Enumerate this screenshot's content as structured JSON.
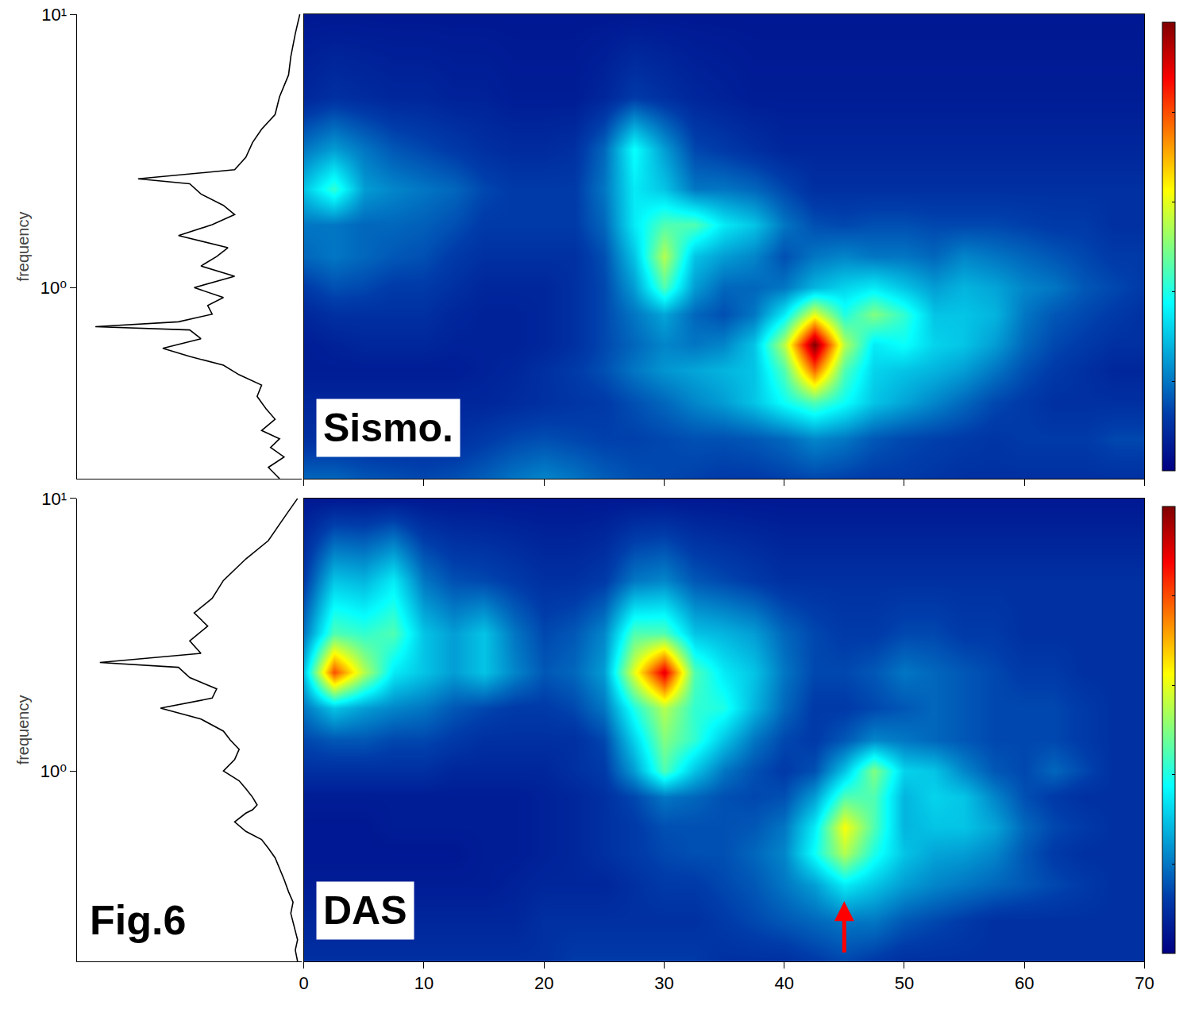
{
  "figure_label": "Fig.6",
  "chart_data": [
    {
      "type": "heatmap",
      "label": "Sismo.",
      "color": "Jet",
      "zlim": [
        0,
        1
      ],
      "log": "y",
      "tick_labels": "y",
      "y_title": "frequency",
      "xlim": [
        0,
        70
      ],
      "xticks": [
        0,
        10,
        20,
        30,
        40,
        50,
        60,
        70
      ],
      "ylim": [
        0.2,
        10
      ],
      "yticks": [
        {
          "value": 1,
          "label": "10⁰"
        },
        {
          "value": 10,
          "label": "10¹"
        }
      ],
      "x": [
        0,
        2.5,
        5,
        7.5,
        10,
        12.5,
        15,
        17.5,
        20,
        22.5,
        25,
        27.5,
        30,
        32.5,
        35,
        37.5,
        40,
        42.5,
        45,
        47.5,
        50,
        52.5,
        55,
        57.5,
        60,
        62.5,
        65,
        67.5,
        70
      ],
      "y": [
        0.2,
        0.28,
        0.38,
        0.5,
        0.62,
        0.8,
        1.0,
        1.3,
        1.7,
        2.3,
        3.2,
        5,
        10
      ],
      "z": [
        [
          0.18,
          0.18,
          0.16,
          0.15,
          0.14,
          0.15,
          0.17,
          0.2,
          0.22,
          0.2,
          0.17,
          0.15,
          0.14,
          0.13,
          0.12,
          0.12,
          0.13,
          0.14,
          0.13,
          0.12,
          0.12,
          0.11,
          0.1,
          0.1,
          0.1,
          0.1,
          0.1,
          0.1,
          0.1
        ],
        [
          0.1,
          0.1,
          0.1,
          0.1,
          0.1,
          0.1,
          0.12,
          0.14,
          0.15,
          0.14,
          0.13,
          0.13,
          0.14,
          0.15,
          0.15,
          0.16,
          0.18,
          0.22,
          0.2,
          0.16,
          0.14,
          0.13,
          0.12,
          0.11,
          0.12,
          0.12,
          0.12,
          0.14,
          0.14
        ],
        [
          0.08,
          0.08,
          0.08,
          0.08,
          0.08,
          0.08,
          0.08,
          0.09,
          0.1,
          0.11,
          0.12,
          0.15,
          0.18,
          0.22,
          0.25,
          0.3,
          0.38,
          0.45,
          0.38,
          0.3,
          0.26,
          0.22,
          0.18,
          0.14,
          0.12,
          0.1,
          0.1,
          0.1,
          0.1
        ],
        [
          0.06,
          0.06,
          0.06,
          0.06,
          0.06,
          0.06,
          0.07,
          0.08,
          0.1,
          0.12,
          0.15,
          0.2,
          0.24,
          0.26,
          0.28,
          0.3,
          0.45,
          0.78,
          0.45,
          0.32,
          0.3,
          0.28,
          0.25,
          0.2,
          0.15,
          0.12,
          0.1,
          0.08,
          0.08
        ],
        [
          0.06,
          0.07,
          0.08,
          0.08,
          0.08,
          0.07,
          0.07,
          0.07,
          0.08,
          0.1,
          0.14,
          0.18,
          0.22,
          0.2,
          0.22,
          0.3,
          0.55,
          1.0,
          0.55,
          0.35,
          0.38,
          0.32,
          0.3,
          0.25,
          0.18,
          0.14,
          0.12,
          0.1,
          0.1
        ],
        [
          0.08,
          0.1,
          0.1,
          0.1,
          0.1,
          0.08,
          0.07,
          0.07,
          0.08,
          0.1,
          0.14,
          0.2,
          0.26,
          0.18,
          0.15,
          0.2,
          0.35,
          0.6,
          0.4,
          0.5,
          0.42,
          0.3,
          0.3,
          0.28,
          0.2,
          0.16,
          0.14,
          0.12,
          0.1
        ],
        [
          0.12,
          0.15,
          0.14,
          0.12,
          0.12,
          0.1,
          0.08,
          0.08,
          0.08,
          0.1,
          0.14,
          0.25,
          0.45,
          0.25,
          0.18,
          0.18,
          0.2,
          0.28,
          0.32,
          0.35,
          0.3,
          0.25,
          0.28,
          0.26,
          0.22,
          0.2,
          0.16,
          0.14,
          0.12
        ],
        [
          0.18,
          0.2,
          0.18,
          0.16,
          0.15,
          0.12,
          0.1,
          0.1,
          0.1,
          0.1,
          0.15,
          0.3,
          0.55,
          0.3,
          0.25,
          0.22,
          0.15,
          0.2,
          0.22,
          0.2,
          0.2,
          0.18,
          0.22,
          0.2,
          0.18,
          0.16,
          0.14,
          0.12,
          0.12
        ],
        [
          0.2,
          0.2,
          0.18,
          0.18,
          0.17,
          0.15,
          0.12,
          0.12,
          0.12,
          0.12,
          0.18,
          0.35,
          0.45,
          0.45,
          0.35,
          0.3,
          0.2,
          0.15,
          0.14,
          0.15,
          0.15,
          0.14,
          0.14,
          0.14,
          0.13,
          0.12,
          0.12,
          0.1,
          0.1
        ],
        [
          0.3,
          0.42,
          0.25,
          0.22,
          0.2,
          0.18,
          0.14,
          0.12,
          0.12,
          0.12,
          0.2,
          0.35,
          0.3,
          0.2,
          0.2,
          0.18,
          0.14,
          0.1,
          0.1,
          0.1,
          0.1,
          0.1,
          0.1,
          0.1,
          0.1,
          0.1,
          0.1,
          0.1,
          0.1
        ],
        [
          0.2,
          0.25,
          0.2,
          0.16,
          0.14,
          0.12,
          0.1,
          0.09,
          0.09,
          0.1,
          0.18,
          0.38,
          0.25,
          0.14,
          0.12,
          0.1,
          0.08,
          0.08,
          0.08,
          0.08,
          0.08,
          0.08,
          0.08,
          0.08,
          0.08,
          0.08,
          0.08,
          0.08,
          0.08
        ],
        [
          0.08,
          0.1,
          0.09,
          0.08,
          0.08,
          0.07,
          0.07,
          0.06,
          0.06,
          0.06,
          0.08,
          0.12,
          0.1,
          0.08,
          0.07,
          0.06,
          0.06,
          0.06,
          0.06,
          0.06,
          0.06,
          0.06,
          0.06,
          0.06,
          0.06,
          0.06,
          0.06,
          0.06,
          0.06
        ],
        [
          0.05,
          0.05,
          0.05,
          0.05,
          0.05,
          0.05,
          0.05,
          0.05,
          0.05,
          0.05,
          0.05,
          0.05,
          0.05,
          0.05,
          0.05,
          0.05,
          0.05,
          0.05,
          0.05,
          0.05,
          0.05,
          0.05,
          0.05,
          0.05,
          0.05,
          0.05,
          0.05,
          0.05,
          0.05
        ]
      ],
      "spectrum": {
        "type": "line",
        "color": "black",
        "xlim": [
          1,
          0
        ],
        "frequency": [
          0.2,
          0.22,
          0.24,
          0.26,
          0.28,
          0.3,
          0.33,
          0.36,
          0.4,
          0.44,
          0.48,
          0.52,
          0.56,
          0.6,
          0.65,
          0.7,
          0.72,
          0.75,
          0.8,
          0.86,
          0.92,
          1.0,
          1.1,
          1.2,
          1.3,
          1.4,
          1.55,
          1.7,
          1.85,
          2.0,
          2.2,
          2.4,
          2.5,
          2.7,
          3.0,
          3.4,
          3.8,
          4.3,
          5.0,
          6.0,
          7.0,
          8.5,
          10
        ],
        "amplitude": [
          0.1,
          0.15,
          0.08,
          0.14,
          0.1,
          0.18,
          0.12,
          0.16,
          0.2,
          0.18,
          0.28,
          0.35,
          0.5,
          0.62,
          0.45,
          0.5,
          0.92,
          0.55,
          0.4,
          0.42,
          0.35,
          0.48,
          0.3,
          0.45,
          0.38,
          0.33,
          0.55,
          0.4,
          0.3,
          0.35,
          0.45,
          0.5,
          0.73,
          0.3,
          0.25,
          0.22,
          0.18,
          0.12,
          0.1,
          0.06,
          0.05,
          0.03,
          0.01
        ]
      }
    },
    {
      "type": "heatmap",
      "label": "DAS",
      "color": "Jet",
      "zlim": [
        0,
        1
      ],
      "log": "y",
      "y_title": "frequency",
      "xlim": [
        0,
        70
      ],
      "xticks": [
        0,
        10,
        20,
        30,
        40,
        50,
        60,
        70
      ],
      "ylim": [
        0.2,
        10
      ],
      "yticks": [
        {
          "value": 1,
          "label": "10⁰"
        },
        {
          "value": 10,
          "label": "10¹"
        }
      ],
      "arrow": {
        "x": 45,
        "color": "red"
      },
      "x": [
        0,
        2.5,
        5,
        7.5,
        10,
        12.5,
        15,
        17.5,
        20,
        22.5,
        25,
        27.5,
        30,
        32.5,
        35,
        37.5,
        40,
        42.5,
        45,
        47.5,
        50,
        52.5,
        55,
        57.5,
        60,
        62.5,
        65,
        67.5,
        70
      ],
      "y": [
        0.2,
        0.28,
        0.38,
        0.5,
        0.62,
        0.8,
        1.0,
        1.3,
        1.7,
        2.3,
        3.2,
        5,
        10
      ],
      "z": [
        [
          0.1,
          0.1,
          0.1,
          0.1,
          0.1,
          0.1,
          0.1,
          0.1,
          0.1,
          0.12,
          0.12,
          0.12,
          0.12,
          0.12,
          0.1,
          0.1,
          0.1,
          0.12,
          0.14,
          0.12,
          0.1,
          0.1,
          0.1,
          0.1,
          0.1,
          0.1,
          0.1,
          0.1,
          0.1
        ],
        [
          0.08,
          0.08,
          0.08,
          0.08,
          0.08,
          0.08,
          0.08,
          0.08,
          0.1,
          0.1,
          0.1,
          0.1,
          0.1,
          0.1,
          0.12,
          0.14,
          0.16,
          0.18,
          0.2,
          0.2,
          0.16,
          0.14,
          0.12,
          0.1,
          0.1,
          0.1,
          0.1,
          0.1,
          0.1
        ],
        [
          0.06,
          0.06,
          0.06,
          0.06,
          0.06,
          0.06,
          0.06,
          0.07,
          0.08,
          0.08,
          0.08,
          0.1,
          0.12,
          0.12,
          0.14,
          0.16,
          0.2,
          0.25,
          0.35,
          0.3,
          0.25,
          0.22,
          0.2,
          0.18,
          0.16,
          0.14,
          0.12,
          0.1,
          0.1
        ],
        [
          0.05,
          0.05,
          0.05,
          0.05,
          0.05,
          0.05,
          0.06,
          0.06,
          0.07,
          0.08,
          0.1,
          0.12,
          0.14,
          0.15,
          0.15,
          0.18,
          0.22,
          0.38,
          0.55,
          0.4,
          0.3,
          0.26,
          0.25,
          0.22,
          0.16,
          0.12,
          0.1,
          0.1,
          0.1
        ],
        [
          0.05,
          0.05,
          0.05,
          0.06,
          0.06,
          0.06,
          0.06,
          0.06,
          0.07,
          0.08,
          0.1,
          0.12,
          0.15,
          0.15,
          0.15,
          0.16,
          0.2,
          0.35,
          0.62,
          0.45,
          0.28,
          0.3,
          0.3,
          0.26,
          0.18,
          0.14,
          0.12,
          0.1,
          0.1
        ],
        [
          0.06,
          0.06,
          0.06,
          0.06,
          0.06,
          0.06,
          0.06,
          0.06,
          0.07,
          0.08,
          0.1,
          0.14,
          0.2,
          0.18,
          0.15,
          0.14,
          0.15,
          0.25,
          0.45,
          0.45,
          0.28,
          0.32,
          0.3,
          0.22,
          0.15,
          0.12,
          0.1,
          0.1,
          0.1
        ],
        [
          0.1,
          0.1,
          0.1,
          0.1,
          0.1,
          0.08,
          0.08,
          0.08,
          0.08,
          0.1,
          0.12,
          0.25,
          0.45,
          0.3,
          0.2,
          0.15,
          0.12,
          0.15,
          0.3,
          0.5,
          0.32,
          0.3,
          0.22,
          0.16,
          0.14,
          0.18,
          0.14,
          0.1,
          0.1
        ],
        [
          0.14,
          0.16,
          0.16,
          0.14,
          0.14,
          0.12,
          0.1,
          0.1,
          0.1,
          0.1,
          0.14,
          0.32,
          0.5,
          0.42,
          0.3,
          0.2,
          0.14,
          0.12,
          0.16,
          0.22,
          0.2,
          0.18,
          0.16,
          0.14,
          0.14,
          0.14,
          0.12,
          0.1,
          0.1
        ],
        [
          0.2,
          0.3,
          0.25,
          0.22,
          0.2,
          0.16,
          0.14,
          0.12,
          0.12,
          0.14,
          0.2,
          0.4,
          0.55,
          0.42,
          0.4,
          0.28,
          0.18,
          0.12,
          0.12,
          0.14,
          0.16,
          0.18,
          0.16,
          0.14,
          0.14,
          0.14,
          0.12,
          0.1,
          0.1
        ],
        [
          0.3,
          0.8,
          0.55,
          0.35,
          0.3,
          0.25,
          0.3,
          0.22,
          0.16,
          0.18,
          0.25,
          0.6,
          0.9,
          0.45,
          0.35,
          0.3,
          0.2,
          0.14,
          0.14,
          0.16,
          0.2,
          0.18,
          0.16,
          0.14,
          0.12,
          0.12,
          0.1,
          0.1,
          0.1
        ],
        [
          0.2,
          0.45,
          0.42,
          0.45,
          0.3,
          0.25,
          0.3,
          0.2,
          0.14,
          0.16,
          0.22,
          0.45,
          0.45,
          0.3,
          0.28,
          0.25,
          0.18,
          0.14,
          0.12,
          0.12,
          0.14,
          0.14,
          0.12,
          0.12,
          0.1,
          0.1,
          0.1,
          0.1,
          0.1
        ],
        [
          0.12,
          0.3,
          0.28,
          0.35,
          0.2,
          0.15,
          0.14,
          0.12,
          0.1,
          0.1,
          0.12,
          0.2,
          0.22,
          0.16,
          0.14,
          0.12,
          0.1,
          0.1,
          0.1,
          0.1,
          0.1,
          0.1,
          0.1,
          0.1,
          0.1,
          0.1,
          0.1,
          0.1,
          0.1
        ],
        [
          0.05,
          0.05,
          0.05,
          0.05,
          0.05,
          0.05,
          0.05,
          0.05,
          0.05,
          0.05,
          0.05,
          0.05,
          0.05,
          0.05,
          0.05,
          0.05,
          0.05,
          0.05,
          0.05,
          0.05,
          0.05,
          0.05,
          0.05,
          0.05,
          0.05,
          0.05,
          0.05,
          0.05,
          0.05
        ]
      ],
      "spectrum": {
        "type": "line",
        "color": "black",
        "xlim": [
          1,
          0
        ],
        "frequency": [
          0.2,
          0.22,
          0.24,
          0.26,
          0.28,
          0.3,
          0.33,
          0.36,
          0.4,
          0.44,
          0.48,
          0.52,
          0.56,
          0.6,
          0.65,
          0.7,
          0.72,
          0.75,
          0.8,
          0.86,
          0.92,
          1.0,
          1.1,
          1.2,
          1.3,
          1.4,
          1.55,
          1.7,
          1.85,
          2.0,
          2.2,
          2.4,
          2.5,
          2.7,
          3.0,
          3.4,
          3.8,
          4.3,
          5.0,
          6.0,
          7.0,
          8.5,
          10
        ],
        "amplitude": [
          0.02,
          0.03,
          0.02,
          0.03,
          0.04,
          0.05,
          0.04,
          0.06,
          0.08,
          0.1,
          0.12,
          0.15,
          0.18,
          0.25,
          0.3,
          0.25,
          0.22,
          0.2,
          0.22,
          0.25,
          0.28,
          0.35,
          0.3,
          0.28,
          0.32,
          0.35,
          0.45,
          0.63,
          0.4,
          0.38,
          0.5,
          0.55,
          0.9,
          0.45,
          0.5,
          0.42,
          0.48,
          0.4,
          0.35,
          0.25,
          0.15,
          0.08,
          0.02
        ]
      }
    }
  ]
}
